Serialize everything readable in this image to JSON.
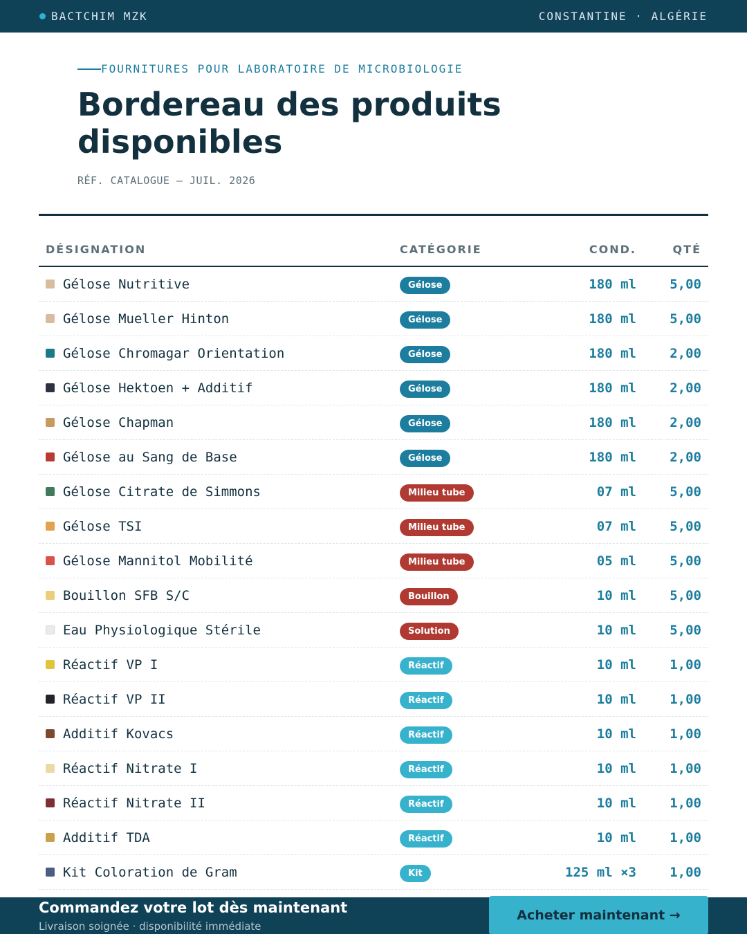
{
  "topbar": {
    "brand": "BACTCHIM MZK",
    "location": "CONSTANTINE · ALGÉRIE"
  },
  "header": {
    "eyebrow": "FOURNITURES POUR LABORATOIRE DE MICROBIOLOGIE",
    "title": "Bordereau des produits disponibles",
    "catalog_ref": "RÉF. CATALOGUE — JUIL. 2026"
  },
  "table": {
    "columns": {
      "name": "DÉSIGNATION",
      "category": "CATÉGORIE",
      "cond": "COND.",
      "qty": "QTÉ"
    },
    "category_colors": {
      "Gélose": "#1c7d9e",
      "Milieu tube": "#b03a32",
      "Bouillon": "#b03a32",
      "Solution": "#b03a32",
      "Réactif": "#37b2cc",
      "Kit": "#37b2cc"
    },
    "rows": [
      {
        "name": "Gélose Nutritive",
        "category": "Gélose",
        "cond": "180 ml",
        "qty": "5,00",
        "swatch": "#d8bc9e"
      },
      {
        "name": "Gélose Mueller Hinton",
        "category": "Gélose",
        "cond": "180 ml",
        "qty": "5,00",
        "swatch": "#d8bc9e"
      },
      {
        "name": "Gélose Chromagar Orientation",
        "category": "Gélose",
        "cond": "180 ml",
        "qty": "2,00",
        "swatch": "#1b7a88"
      },
      {
        "name": "Gélose Hektoen + Additif",
        "category": "Gélose",
        "cond": "180 ml",
        "qty": "2,00",
        "swatch": "#2e3140"
      },
      {
        "name": "Gélose Chapman",
        "category": "Gélose",
        "cond": "180 ml",
        "qty": "2,00",
        "swatch": "#c99a5e"
      },
      {
        "name": "Gélose au Sang de Base",
        "category": "Gélose",
        "cond": "180 ml",
        "qty": "2,00",
        "swatch": "#b83b33"
      },
      {
        "name": "Gélose Citrate de Simmons",
        "category": "Milieu tube",
        "cond": "07 ml",
        "qty": "5,00",
        "swatch": "#3f7a5b"
      },
      {
        "name": "Gélose TSI",
        "category": "Milieu tube",
        "cond": "07 ml",
        "qty": "5,00",
        "swatch": "#e2a24f"
      },
      {
        "name": "Gélose Mannitol Mobilité",
        "category": "Milieu tube",
        "cond": "05 ml",
        "qty": "5,00",
        "swatch": "#d9524a"
      },
      {
        "name": "Bouillon SFB S/C",
        "category": "Bouillon",
        "cond": "10 ml",
        "qty": "5,00",
        "swatch": "#ebce78"
      },
      {
        "name": "Eau Physiologique Stérile",
        "category": "Solution",
        "cond": "10 ml",
        "qty": "5,00",
        "swatch": "#ecebea"
      },
      {
        "name": "Réactif VP I",
        "category": "Réactif",
        "cond": "10 ml",
        "qty": "1,00",
        "swatch": "#e0c43b"
      },
      {
        "name": "Réactif VP II",
        "category": "Réactif",
        "cond": "10 ml",
        "qty": "1,00",
        "swatch": "#252329"
      },
      {
        "name": "Additif Kovacs",
        "category": "Réactif",
        "cond": "10 ml",
        "qty": "1,00",
        "swatch": "#7b4a2e"
      },
      {
        "name": "Réactif Nitrate I",
        "category": "Réactif",
        "cond": "10 ml",
        "qty": "1,00",
        "swatch": "#eadaa4"
      },
      {
        "name": "Réactif Nitrate II",
        "category": "Réactif",
        "cond": "10 ml",
        "qty": "1,00",
        "swatch": "#7e2f35"
      },
      {
        "name": "Additif TDA",
        "category": "Réactif",
        "cond": "10 ml",
        "qty": "1,00",
        "swatch": "#c9a04e"
      },
      {
        "name": "Kit Coloration de Gram",
        "category": "Kit",
        "cond": "125 ml ×3",
        "qty": "1,00",
        "swatch": "#4b5e82"
      }
    ]
  },
  "footer": {
    "title": "Commandez votre lot dès maintenant",
    "subtitle": "Livraison soignée · disponibilité immédiate",
    "button_label": "Acheter maintenant →"
  }
}
